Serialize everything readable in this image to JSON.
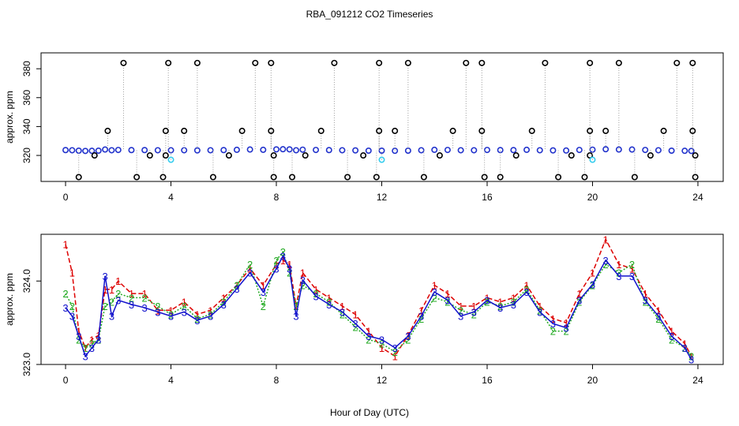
{
  "title": "RBA_091212  CO2 Timeseries",
  "xlabel": "Hour of Day (UTC)",
  "chart_data": [
    {
      "type": "scatter",
      "ylabel": "approx. ppm",
      "xlim": [
        -0.93,
        24.96
      ],
      "xticks": [
        0,
        4,
        8,
        12,
        16,
        20,
        24
      ],
      "ylim": [
        302,
        391
      ],
      "yticks": [
        320,
        340,
        360,
        380
      ],
      "series": [
        {
          "color": "#2233cc",
          "x": [
            0,
            0.25,
            0.5,
            0.75,
            1,
            1.25,
            1.5,
            1.75,
            2,
            2.5,
            3,
            3.5,
            4,
            4.5,
            5,
            5.5,
            6,
            6.5,
            7,
            7.5,
            8,
            8.25,
            8.5,
            8.75,
            9,
            9.5,
            10,
            10.5,
            11,
            11.5,
            12,
            12.5,
            13,
            13.5,
            14,
            14.5,
            15,
            15.5,
            16,
            16.5,
            17,
            17.5,
            18,
            18.5,
            19,
            19.5,
            20,
            20.5,
            21,
            21.5,
            22,
            22.5,
            23,
            23.5,
            23.75
          ],
          "values": [
            323.7,
            323.6,
            323.3,
            323.1,
            323.2,
            323.3,
            324.1,
            323.6,
            323.8,
            323.7,
            323.7,
            323.6,
            323.6,
            323.6,
            323.5,
            323.6,
            323.7,
            323.9,
            324.1,
            323.9,
            324.2,
            324.3,
            324.2,
            323.6,
            324.0,
            323.8,
            323.7,
            323.6,
            323.5,
            323.3,
            323.3,
            323.2,
            323.3,
            323.6,
            323.9,
            323.8,
            323.6,
            323.6,
            323.8,
            323.7,
            323.7,
            323.9,
            323.6,
            323.5,
            323.4,
            323.8,
            324.0,
            324.3,
            324.1,
            324.1,
            323.8,
            323.6,
            323.3,
            323.2,
            323.1
          ]
        },
        {
          "color": "#000000",
          "x": [
            2.2,
            3.9,
            5.0,
            7.2,
            7.8,
            10.2,
            11.9,
            13.0,
            15.2,
            15.8,
            18.2,
            19.9,
            21.0,
            23.2,
            23.8,
            0.5,
            2.7,
            3.7,
            5.6,
            7.9,
            8.6,
            10.7,
            11.8,
            13.6,
            15.9,
            16.5,
            18.7,
            19.7,
            21.6,
            23.9,
            1.6,
            3.8,
            4.5,
            6.7,
            7.8,
            9.7,
            11.9,
            12.5,
            14.7,
            15.8,
            17.7,
            19.9,
            20.5,
            22.7,
            23.8,
            1.1,
            3.2,
            3.8,
            6.2,
            7.9,
            9.1,
            11.3,
            14.2,
            17.1,
            19.2,
            19.9,
            22.2,
            23.9
          ],
          "values": [
            384,
            384,
            384,
            384,
            384,
            384,
            384,
            384,
            384,
            384,
            384,
            384,
            384,
            384,
            384,
            305,
            305,
            305,
            305,
            305,
            305,
            305,
            305,
            305,
            305,
            305,
            305,
            305,
            305,
            305,
            337,
            337,
            337,
            337,
            337,
            337,
            337,
            337,
            337,
            337,
            337,
            337,
            337,
            337,
            337,
            320,
            320,
            320,
            320,
            320,
            320,
            320,
            320,
            320,
            320,
            320,
            320,
            320
          ]
        },
        {
          "color": "#33ccee",
          "x": [
            4.0,
            12.0,
            20.0
          ],
          "values": [
            317,
            317,
            317
          ]
        }
      ]
    },
    {
      "type": "line",
      "ylabel": "approx. ppm",
      "xlim": [
        -0.93,
        24.96
      ],
      "xticks": [
        0,
        4,
        8,
        12,
        16,
        20,
        24
      ],
      "ylim": [
        323.0,
        324.56
      ],
      "yticks": [
        {
          "value": 323.0,
          "label": "323.0"
        },
        {
          "value": 324.0,
          "label": "324.0"
        }
      ],
      "x": [
        0,
        0.25,
        0.5,
        0.75,
        1,
        1.25,
        1.5,
        1.75,
        2,
        2.5,
        3,
        3.5,
        4,
        4.5,
        5,
        5.5,
        6,
        6.5,
        7,
        7.5,
        8,
        8.25,
        8.5,
        8.75,
        9,
        9.5,
        10,
        10.5,
        11,
        11.5,
        12,
        12.5,
        13,
        13.5,
        14,
        14.5,
        15,
        15.5,
        16,
        16.5,
        17,
        17.5,
        18,
        18.5,
        19,
        19.5,
        20,
        20.5,
        21,
        21.5,
        22,
        22.5,
        23,
        23.5,
        23.75
      ],
      "series": [
        {
          "name": "1",
          "color": "#dd0000",
          "values": [
            324.44,
            324.1,
            323.4,
            323.2,
            323.3,
            323.35,
            323.9,
            323.9,
            324.0,
            323.85,
            323.85,
            323.65,
            323.65,
            323.75,
            323.6,
            323.65,
            323.8,
            323.95,
            324.15,
            323.95,
            324.2,
            324.25,
            324.2,
            323.7,
            324.1,
            323.9,
            323.8,
            323.7,
            323.6,
            323.4,
            323.2,
            323.1,
            323.35,
            323.65,
            323.95,
            323.85,
            323.7,
            323.7,
            323.8,
            323.75,
            323.8,
            323.95,
            323.7,
            323.55,
            323.5,
            323.85,
            324.1,
            324.5,
            324.2,
            324.15,
            323.85,
            323.65,
            323.4,
            323.25,
            323.1
          ]
        },
        {
          "name": "2",
          "color": "#22aa22",
          "values": [
            323.85,
            323.7,
            323.3,
            323.2,
            323.25,
            323.3,
            323.7,
            323.75,
            323.85,
            323.8,
            323.8,
            323.7,
            323.6,
            323.7,
            323.55,
            323.6,
            323.75,
            323.95,
            324.2,
            323.7,
            324.25,
            324.35,
            324.1,
            323.7,
            323.95,
            323.85,
            323.75,
            323.6,
            323.45,
            323.3,
            323.25,
            323.15,
            323.3,
            323.55,
            323.8,
            323.75,
            323.65,
            323.6,
            323.75,
            323.7,
            323.75,
            323.9,
            323.65,
            323.4,
            323.4,
            323.75,
            323.95,
            324.2,
            324.1,
            324.2,
            323.75,
            323.55,
            323.3,
            323.2,
            323.1
          ]
        },
        {
          "name": "3",
          "color": "#1111cc",
          "values": [
            323.68,
            323.58,
            323.34,
            323.1,
            323.2,
            323.3,
            324.06,
            323.58,
            323.77,
            323.72,
            323.68,
            323.63,
            323.58,
            323.63,
            323.53,
            323.58,
            323.72,
            323.91,
            324.1,
            323.87,
            324.15,
            324.3,
            324.15,
            323.58,
            324.01,
            323.82,
            323.72,
            323.63,
            323.49,
            323.34,
            323.3,
            323.2,
            323.34,
            323.58,
            323.87,
            323.77,
            323.58,
            323.63,
            323.77,
            323.68,
            323.72,
            323.87,
            323.63,
            323.49,
            323.44,
            323.77,
            323.96,
            324.25,
            324.06,
            324.06,
            323.77,
            323.58,
            323.34,
            323.2,
            323.06
          ]
        }
      ]
    }
  ]
}
